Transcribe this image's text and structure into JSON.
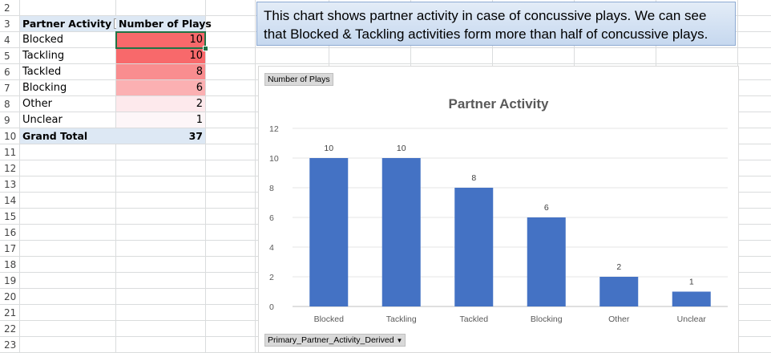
{
  "row_numbers": [
    "2",
    "3",
    "4",
    "5",
    "6",
    "7",
    "8",
    "9",
    "10",
    "11",
    "12",
    "13",
    "14",
    "15",
    "16",
    "17",
    "18",
    "19",
    "20",
    "21",
    "22",
    "23"
  ],
  "pivot": {
    "header_label": "Partner Activity",
    "header_value": "Number of Plays",
    "filter_icon": "dropdown-filter-icon",
    "rows": [
      {
        "label": "Blocked",
        "value": "10"
      },
      {
        "label": "Tackling",
        "value": "10"
      },
      {
        "label": "Tackled",
        "value": "8"
      },
      {
        "label": "Blocking",
        "value": "6"
      },
      {
        "label": "Other",
        "value": "2"
      },
      {
        "label": "Unclear",
        "value": "1"
      }
    ],
    "total_label": "Grand Total",
    "total_value": "37",
    "heat_colors": [
      "#f8696b",
      "#f8696b",
      "#f98d8f",
      "#fbb0b2",
      "#fde9ec",
      "#fdf6f8"
    ]
  },
  "textbox": {
    "line1": "This chart shows partner activity in case of concussive plays. We can see",
    "line2": "that Blocked & Tackling activities form more than half of concussive plays."
  },
  "chart": {
    "value_field_button": "Number of Plays",
    "axis_field_button": "Primary_Partner_Activity_Derived",
    "bar_color": "#4472c4"
  },
  "chart_data": {
    "type": "bar",
    "title": "Partner Activity",
    "categories": [
      "Blocked",
      "Tackling",
      "Tackled",
      "Blocking",
      "Other",
      "Unclear"
    ],
    "values": [
      10,
      10,
      8,
      6,
      2,
      1
    ],
    "ylim": [
      0,
      12
    ],
    "yticks": [
      0,
      2,
      4,
      6,
      8,
      10,
      12
    ],
    "grid": true,
    "data_labels": true
  }
}
